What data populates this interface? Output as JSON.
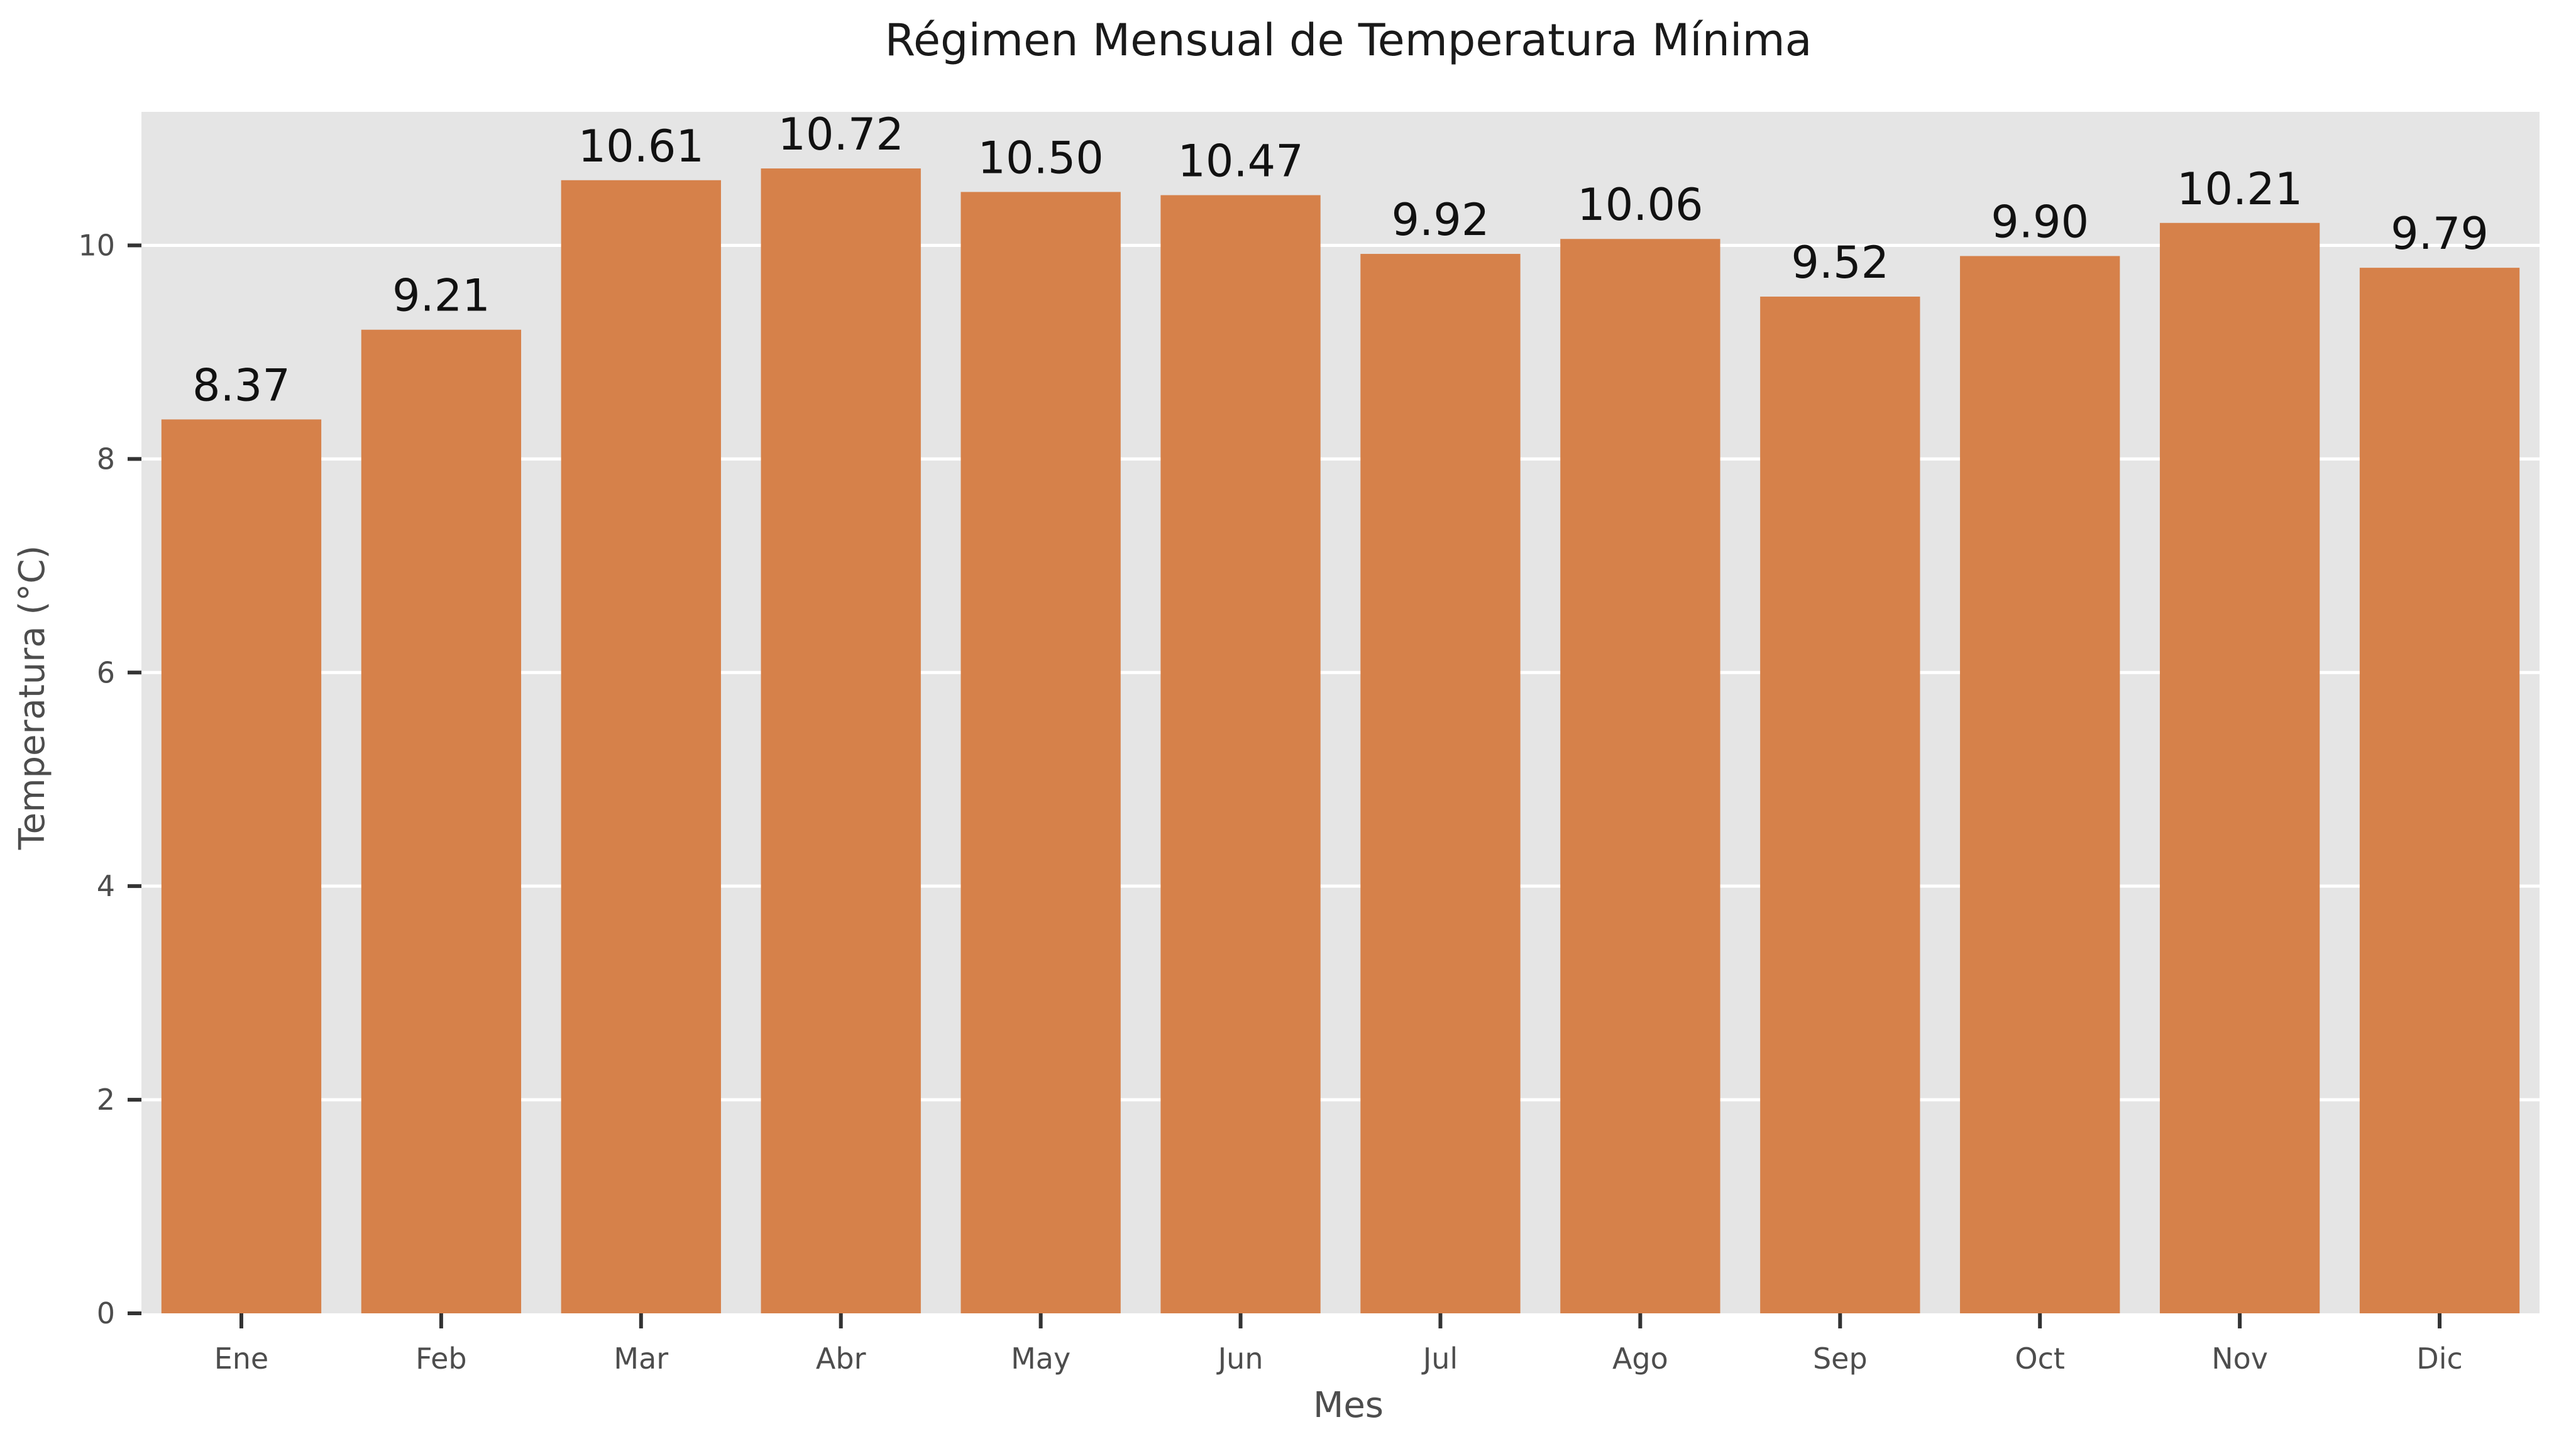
{
  "chart_data": {
    "type": "bar",
    "title": "Régimen Mensual de Temperatura Mínima",
    "xlabel": "Mes",
    "ylabel": "Temperatura (°C)",
    "categories": [
      "Ene",
      "Feb",
      "Mar",
      "Abr",
      "May",
      "Jun",
      "Jul",
      "Ago",
      "Sep",
      "Oct",
      "Nov",
      "Dic"
    ],
    "values": [
      8.37,
      9.21,
      10.61,
      10.72,
      10.5,
      10.47,
      9.92,
      10.06,
      9.52,
      9.9,
      10.21,
      9.79
    ],
    "value_labels": [
      "8.37",
      "9.21",
      "10.61",
      "10.72",
      "10.50",
      "10.47",
      "9.92",
      "10.06",
      "9.52",
      "9.90",
      "10.21",
      "9.79"
    ],
    "yticks": [
      0,
      2,
      4,
      6,
      8,
      10
    ],
    "ylim": [
      0,
      11.25
    ],
    "grid": true,
    "colors": {
      "bar": "#d6814a",
      "plot_bg": "#e5e5e5",
      "grid": "#ffffff"
    }
  }
}
